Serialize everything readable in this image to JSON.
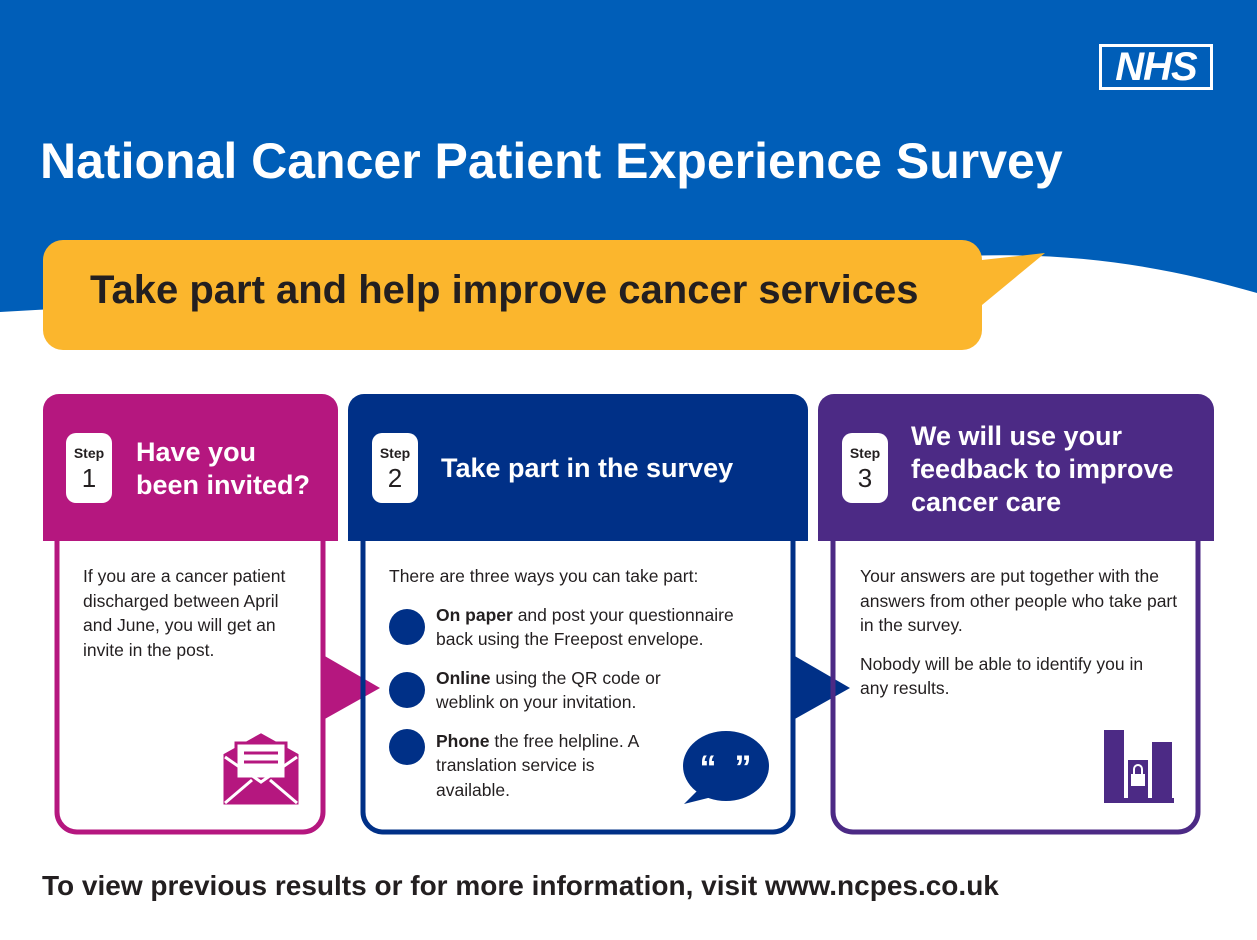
{
  "logo": "NHS",
  "title": "National Cancer Patient Experience Survey",
  "banner": "Take part and help improve cancer services",
  "steps": [
    {
      "label": "Step",
      "number": "1",
      "heading": "Have you been invited?",
      "body": [
        "If you are a cancer patient discharged between April and June, you will get an invite in the post."
      ]
    },
    {
      "label": "Step",
      "number": "2",
      "heading": "Take part in the survey",
      "intro": "There are three ways you can take part:",
      "options": [
        {
          "bold": "On paper",
          "text": "and post your questionnaire back using the Freepost envelope."
        },
        {
          "bold": "Online",
          "text": "using the QR code or weblink on your invitation."
        },
        {
          "bold": "Phone",
          "text": "the free helpline. A translation service is available."
        }
      ]
    },
    {
      "label": "Step",
      "number": "3",
      "heading": "We will use your feedback to improve cancer care",
      "body": [
        "Your answers are put together with the answers from other people who take part in the survey.",
        "Nobody will be able to identify you in any results."
      ]
    }
  ],
  "footer": "To view previous results or for more information, visit www.ncpes.co.uk"
}
